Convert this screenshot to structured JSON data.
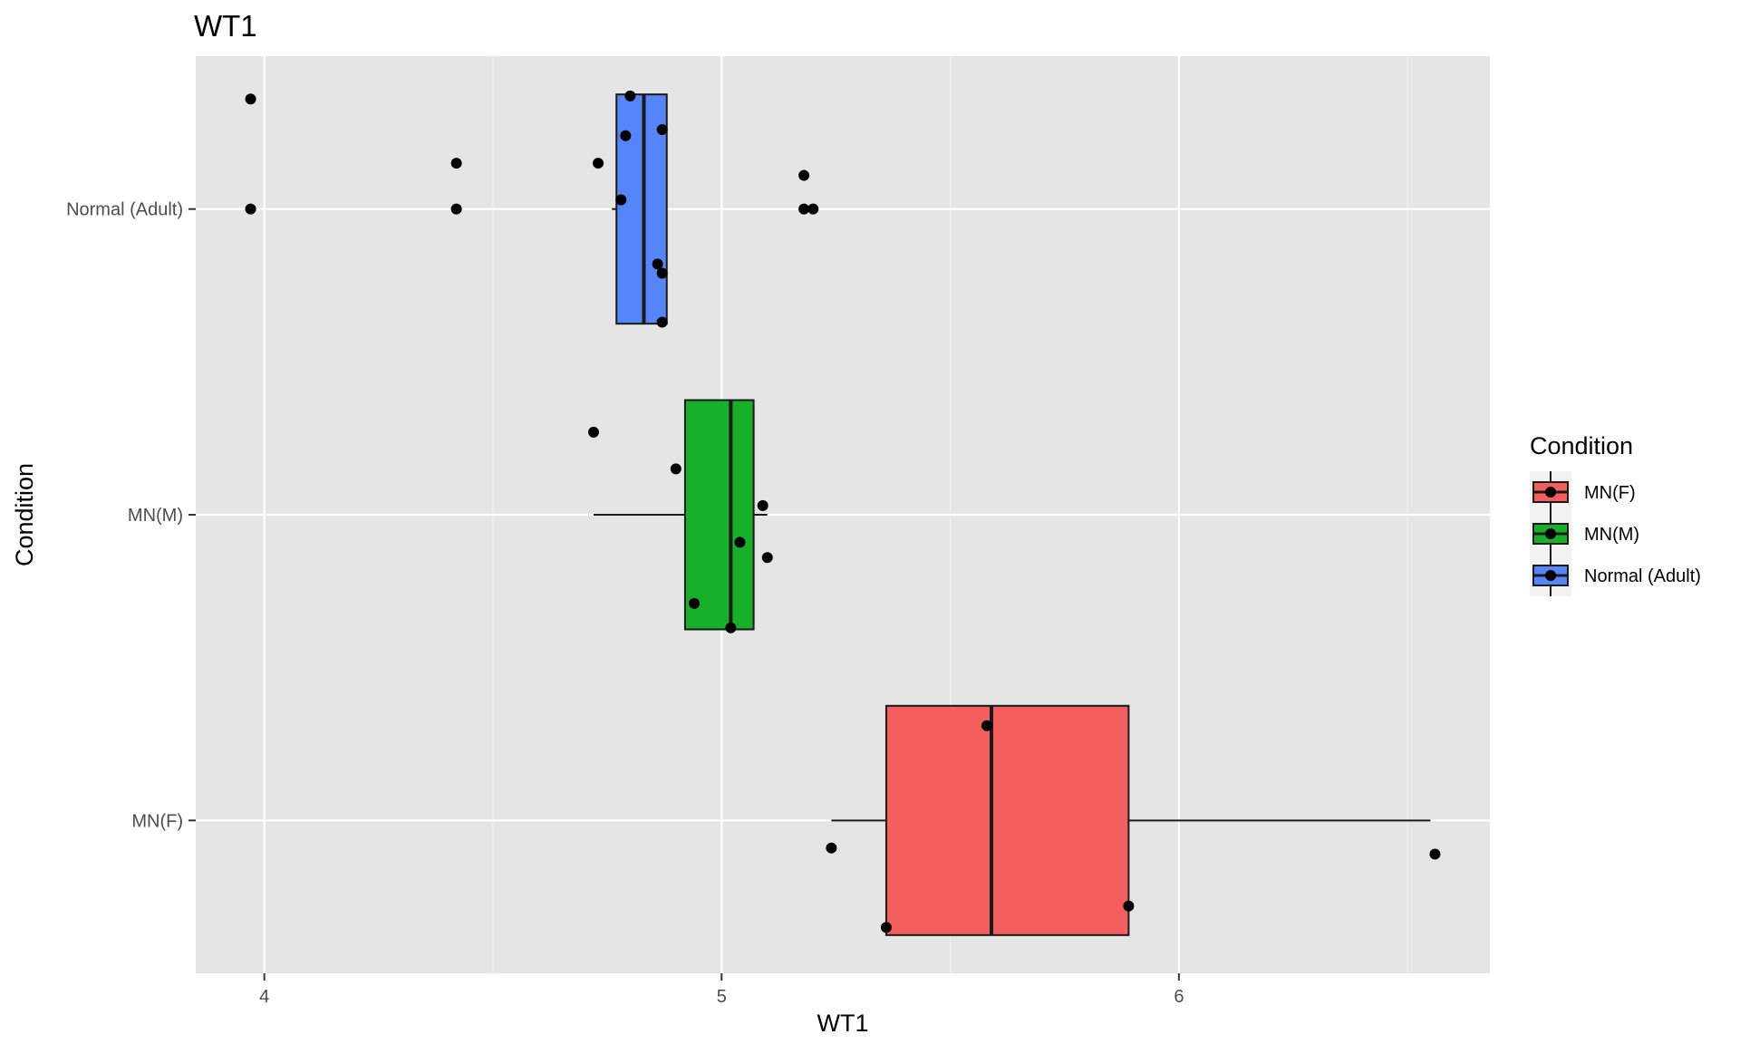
{
  "chart_data": {
    "type": "boxplot",
    "orientation": "horizontal",
    "title": "WT1",
    "xlabel": "WT1",
    "ylabel": "Condition",
    "xlim": [
      3.85,
      6.68
    ],
    "x_ticks": [
      4,
      5,
      6
    ],
    "x_tick_labels": [
      "4",
      "5",
      "6"
    ],
    "categories": [
      "MN(F)",
      "MN(M)",
      "Normal (Adult)"
    ],
    "grid": true,
    "legend": {
      "title": "Condition",
      "position": "right"
    },
    "series": [
      {
        "name": "MN(F)",
        "color": "#F25F5C",
        "whisker_low": 5.24,
        "q1": 5.36,
        "median": 5.59,
        "q3": 5.89,
        "whisker_high": 6.55,
        "points": [
          {
            "x": 5.24,
            "jitter": -0.09
          },
          {
            "x": 5.36,
            "jitter": -0.35
          },
          {
            "x": 5.58,
            "jitter": 0.31
          },
          {
            "x": 5.89,
            "jitter": -0.28
          },
          {
            "x": 6.56,
            "jitter": -0.11
          }
        ]
      },
      {
        "name": "MN(M)",
        "color": "#16B02A",
        "whisker_low": 4.72,
        "q1": 4.92,
        "median": 5.02,
        "q3": 5.07,
        "whisker_high": 5.1,
        "points": [
          {
            "x": 4.72,
            "jitter": 0.27
          },
          {
            "x": 4.9,
            "jitter": 0.15
          },
          {
            "x": 4.94,
            "jitter": -0.29
          },
          {
            "x": 5.02,
            "jitter": -0.37
          },
          {
            "x": 5.04,
            "jitter": -0.09
          },
          {
            "x": 5.09,
            "jitter": 0.03
          },
          {
            "x": 5.1,
            "jitter": -0.14
          }
        ]
      },
      {
        "name": "Normal (Adult)",
        "color": "#5485F9",
        "whisker_low": 4.76,
        "q1": 4.77,
        "median": 4.83,
        "q3": 4.88,
        "whisker_high": 4.88,
        "points": [
          {
            "x": 3.97,
            "jitter": 0.36
          },
          {
            "x": 3.97,
            "jitter": 0.0
          },
          {
            "x": 4.42,
            "jitter": 0.15
          },
          {
            "x": 4.42,
            "jitter": 0.0
          },
          {
            "x": 4.73,
            "jitter": 0.15
          },
          {
            "x": 4.78,
            "jitter": 0.03
          },
          {
            "x": 4.79,
            "jitter": 0.24
          },
          {
            "x": 4.8,
            "jitter": 0.37
          },
          {
            "x": 4.86,
            "jitter": -0.18
          },
          {
            "x": 4.87,
            "jitter": 0.26
          },
          {
            "x": 4.87,
            "jitter": -0.21
          },
          {
            "x": 4.87,
            "jitter": -0.37
          },
          {
            "x": 5.18,
            "jitter": 0.11
          },
          {
            "x": 5.18,
            "jitter": 0.0
          },
          {
            "x": 5.2,
            "jitter": 0.0
          }
        ]
      }
    ]
  }
}
